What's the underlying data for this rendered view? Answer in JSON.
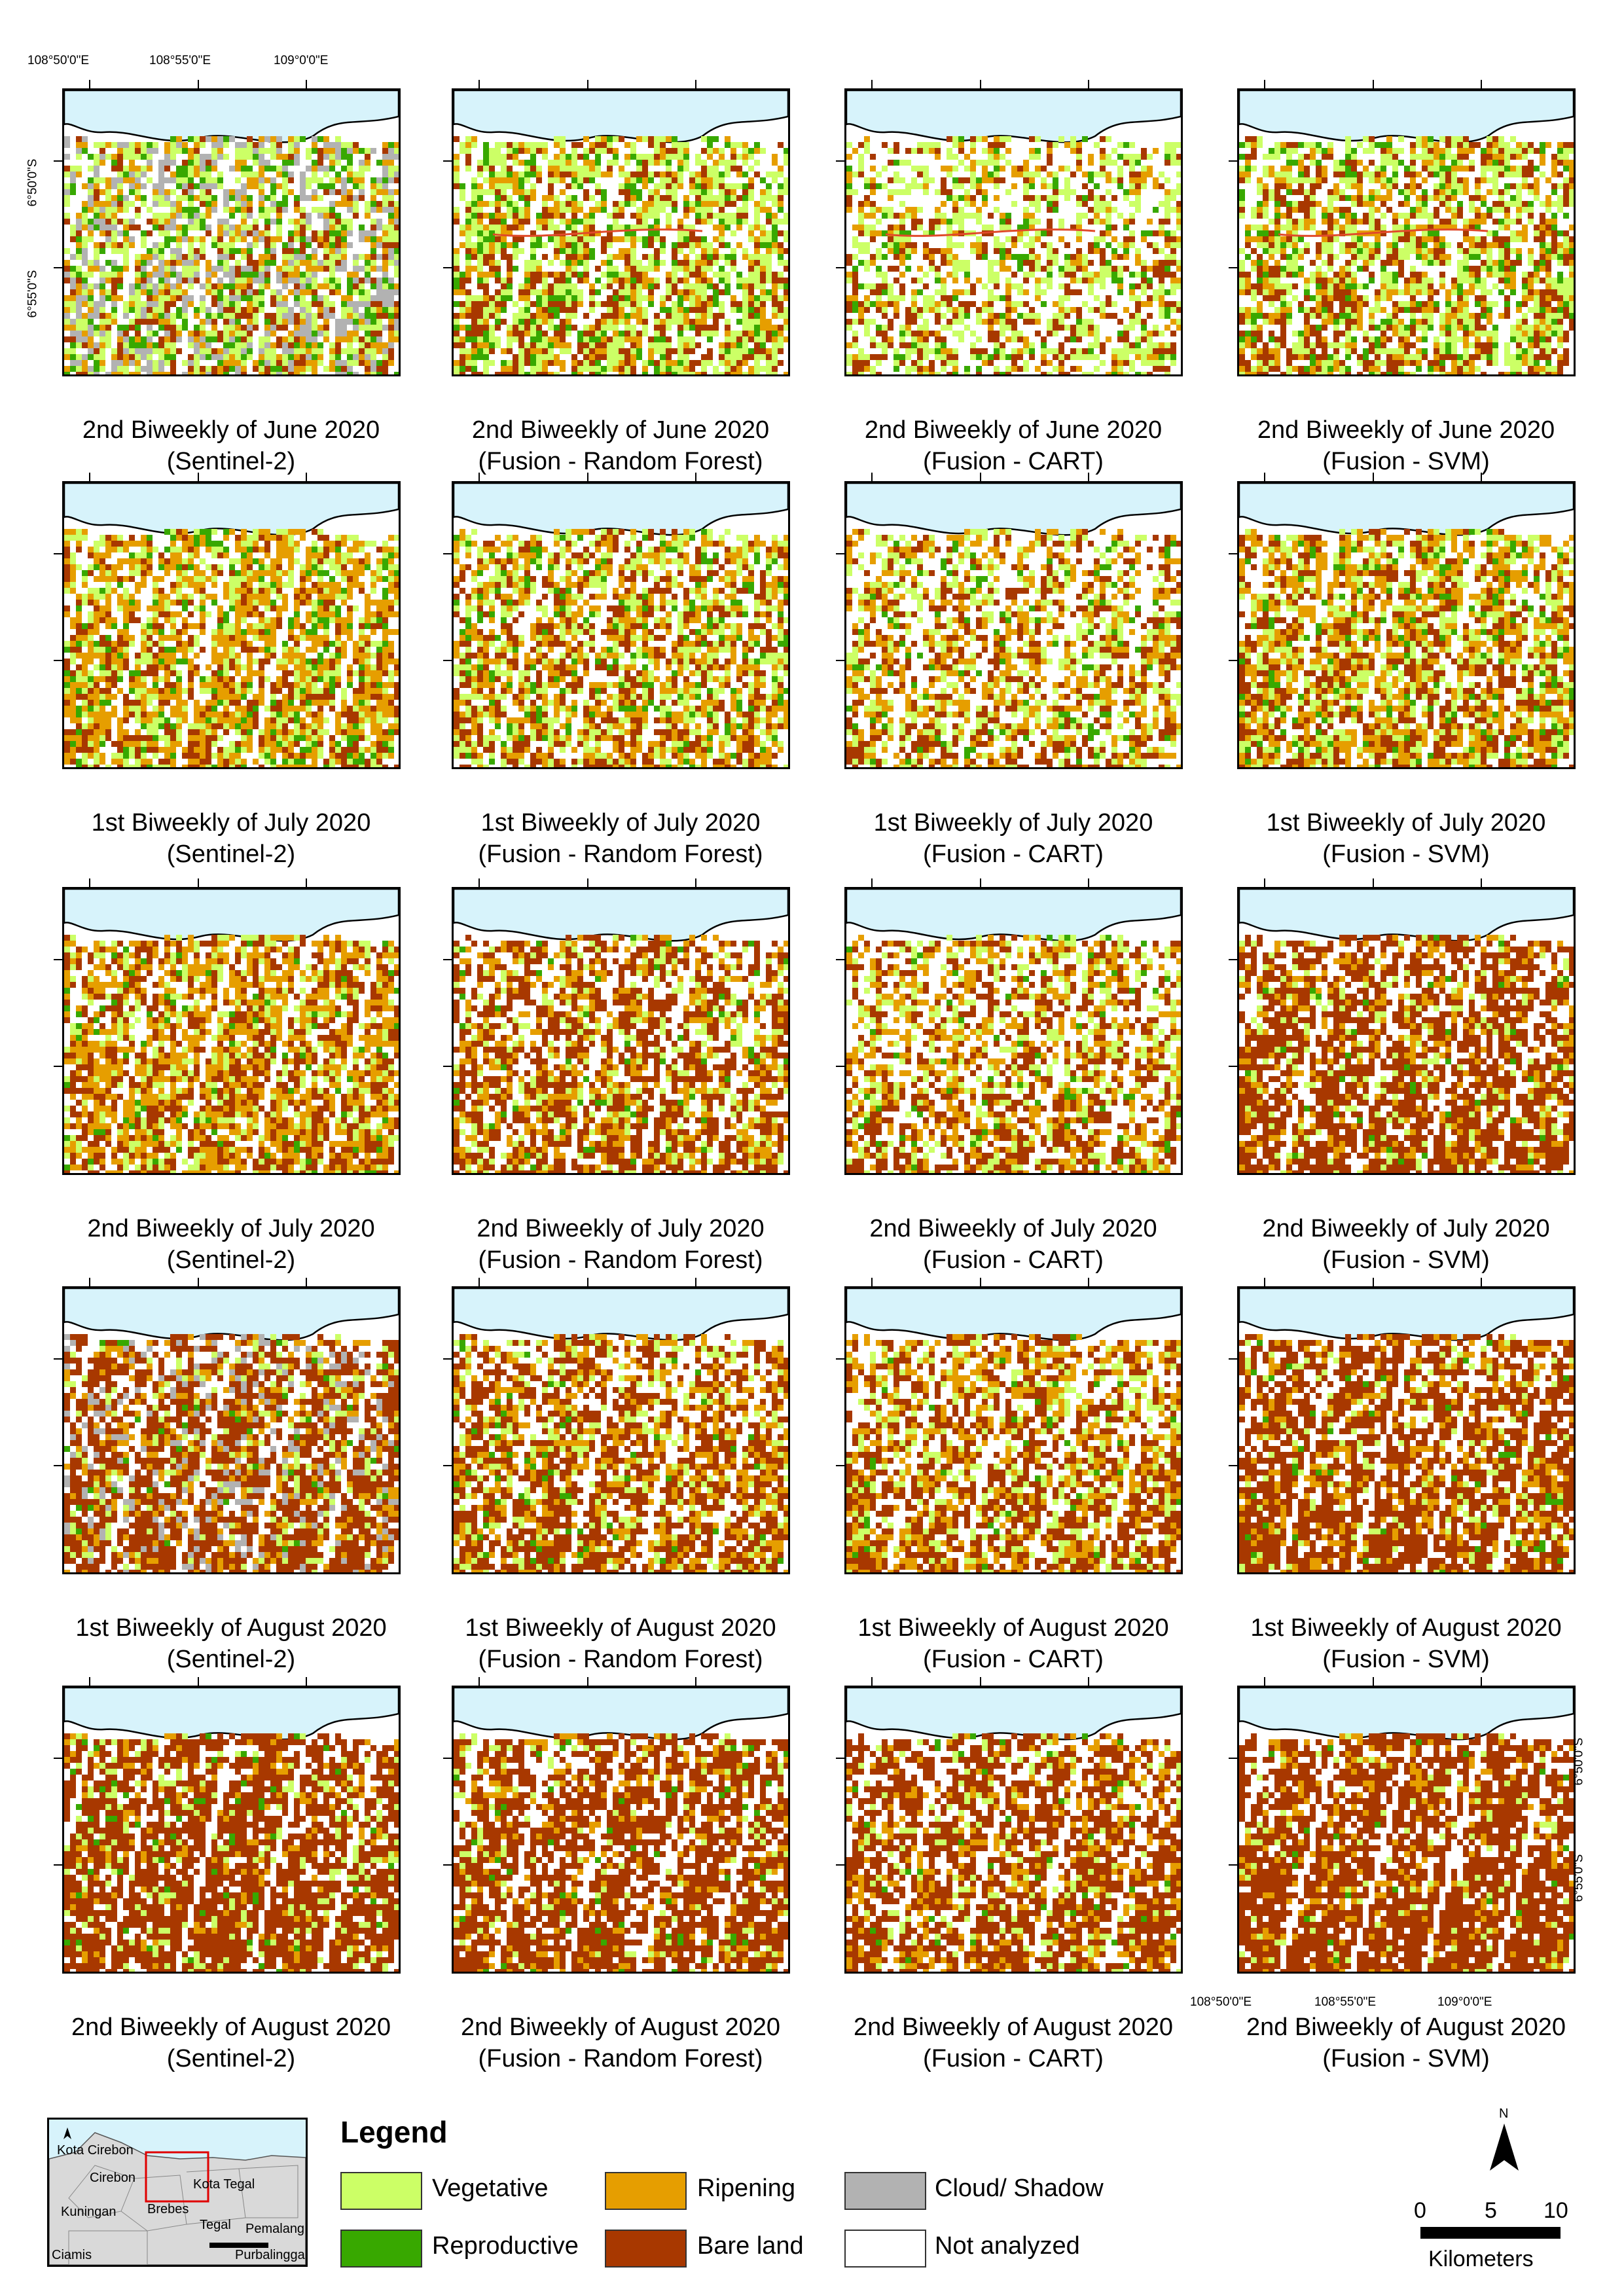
{
  "coordinates": {
    "top_lon": [
      "108°50'0\"E",
      "108°55'0\"E",
      "109°0'0\"E"
    ],
    "bottom_lon": [
      "108°50'0\"E",
      "108°55'0\"E",
      "109°0'0\"E"
    ],
    "left_lat": [
      "6°50'0\"S",
      "6°55'0\"S"
    ],
    "right_lat": [
      "6°50'0\"S",
      "6°55'0\"S"
    ]
  },
  "rows": [
    {
      "period": "2nd Biweekly of June 2020",
      "panels": [
        {
          "sensor": "(Sentinel-2)",
          "mix": {
            "Vegetative": 0.22,
            "Reproductive": 0.12,
            "Ripening": 0.16,
            "Bare land": 0.04,
            "Cloud/ Shadow": 0.22
          }
        },
        {
          "sensor": "(Fusion - Random Forest)",
          "mix": {
            "Vegetative": 0.3,
            "Reproductive": 0.12,
            "Ripening": 0.16,
            "Bare land": 0.12,
            "Cloud/ Shadow": 0
          }
        },
        {
          "sensor": "(Fusion - CART)",
          "mix": {
            "Vegetative": 0.28,
            "Reproductive": 0.06,
            "Ripening": 0.12,
            "Bare land": 0.08,
            "Cloud/ Shadow": 0
          }
        },
        {
          "sensor": "(Fusion - SVM)",
          "mix": {
            "Vegetative": 0.26,
            "Reproductive": 0.1,
            "Ripening": 0.18,
            "Bare land": 0.14,
            "Cloud/ Shadow": 0
          }
        }
      ]
    },
    {
      "period": "1st Biweekly of July 2020",
      "panels": [
        {
          "sensor": "(Sentinel-2)",
          "mix": {
            "Vegetative": 0.18,
            "Reproductive": 0.1,
            "Ripening": 0.36,
            "Bare land": 0.1,
            "Cloud/ Shadow": 0
          }
        },
        {
          "sensor": "(Fusion - Random Forest)",
          "mix": {
            "Vegetative": 0.2,
            "Reproductive": 0.08,
            "Ripening": 0.26,
            "Bare land": 0.14,
            "Cloud/ Shadow": 0
          }
        },
        {
          "sensor": "(Fusion - CART)",
          "mix": {
            "Vegetative": 0.18,
            "Reproductive": 0.05,
            "Ripening": 0.22,
            "Bare land": 0.14,
            "Cloud/ Shadow": 0
          }
        },
        {
          "sensor": "(Fusion - SVM)",
          "mix": {
            "Vegetative": 0.18,
            "Reproductive": 0.06,
            "Ripening": 0.3,
            "Bare land": 0.18,
            "Cloud/ Shadow": 0
          }
        }
      ]
    },
    {
      "period": "2nd Biweekly of July 2020",
      "panels": [
        {
          "sensor": "(Sentinel-2)",
          "mix": {
            "Vegetative": 0.14,
            "Reproductive": 0.04,
            "Ripening": 0.34,
            "Bare land": 0.22,
            "Cloud/ Shadow": 0
          }
        },
        {
          "sensor": "(Fusion - Random Forest)",
          "mix": {
            "Vegetative": 0.12,
            "Reproductive": 0.03,
            "Ripening": 0.2,
            "Bare land": 0.3,
            "Cloud/ Shadow": 0
          }
        },
        {
          "sensor": "(Fusion - CART)",
          "mix": {
            "Vegetative": 0.16,
            "Reproductive": 0.03,
            "Ripening": 0.2,
            "Bare land": 0.2,
            "Cloud/ Shadow": 0
          }
        },
        {
          "sensor": "(Fusion - SVM)",
          "mix": {
            "Vegetative": 0.08,
            "Reproductive": 0.02,
            "Ripening": 0.14,
            "Bare land": 0.48,
            "Cloud/ Shadow": 0
          }
        }
      ]
    },
    {
      "period": "1st Biweekly of August 2020",
      "panels": [
        {
          "sensor": "(Sentinel-2)",
          "mix": {
            "Vegetative": 0.08,
            "Reproductive": 0.02,
            "Ripening": 0.14,
            "Bare land": 0.4,
            "Cloud/ Shadow": 0.12
          }
        },
        {
          "sensor": "(Fusion - Random Forest)",
          "mix": {
            "Vegetative": 0.12,
            "Reproductive": 0.02,
            "Ripening": 0.2,
            "Bare land": 0.34,
            "Cloud/ Shadow": 0
          }
        },
        {
          "sensor": "(Fusion - CART)",
          "mix": {
            "Vegetative": 0.14,
            "Reproductive": 0.02,
            "Ripening": 0.22,
            "Bare land": 0.28,
            "Cloud/ Shadow": 0
          }
        },
        {
          "sensor": "(Fusion - SVM)",
          "mix": {
            "Vegetative": 0.06,
            "Reproductive": 0.02,
            "Ripening": 0.14,
            "Bare land": 0.5,
            "Cloud/ Shadow": 0
          }
        }
      ]
    },
    {
      "period": "2nd Biweekly of August 2020",
      "panels": [
        {
          "sensor": "(Sentinel-2)",
          "mix": {
            "Vegetative": 0.1,
            "Reproductive": 0.03,
            "Ripening": 0.08,
            "Bare land": 0.56,
            "Cloud/ Shadow": 0
          }
        },
        {
          "sensor": "(Fusion - Random Forest)",
          "mix": {
            "Vegetative": 0.06,
            "Reproductive": 0.02,
            "Ripening": 0.12,
            "Bare land": 0.5,
            "Cloud/ Shadow": 0
          }
        },
        {
          "sensor": "(Fusion - CART)",
          "mix": {
            "Vegetative": 0.08,
            "Reproductive": 0.02,
            "Ripening": 0.14,
            "Bare land": 0.44,
            "Cloud/ Shadow": 0
          }
        },
        {
          "sensor": "(Fusion - SVM)",
          "mix": {
            "Vegetative": 0.05,
            "Reproductive": 0.01,
            "Ripening": 0.1,
            "Bare land": 0.58,
            "Cloud/ Shadow": 0
          }
        }
      ]
    }
  ],
  "legend": {
    "title": "Legend",
    "items": [
      {
        "label": "Vegetative",
        "color": "#ccff66"
      },
      {
        "label": "Ripening",
        "color": "#e69e00"
      },
      {
        "label": "Cloud/ Shadow",
        "color": "#b2b2b2"
      },
      {
        "label": "Reproductive",
        "color": "#38a800"
      },
      {
        "label": "Bare land",
        "color": "#a83800"
      },
      {
        "label": "Not analyzed",
        "color": "#ffffff"
      }
    ]
  },
  "colors": {
    "sea": "#d7f3fb",
    "coast": "#000000",
    "road": "#e04a2a"
  },
  "inset": {
    "places": [
      "Kota Cirebon",
      "Cirebon",
      "Kuningan",
      "Ciamis",
      "Brebes",
      "Kota Tegal",
      "Tegal",
      "Pemalang",
      "Purbalingga"
    ],
    "icons": [
      "north-arrow-icon"
    ]
  },
  "scale": {
    "north": "N",
    "ticks": [
      "0",
      "5",
      "10"
    ],
    "unit": "Kilometers"
  }
}
